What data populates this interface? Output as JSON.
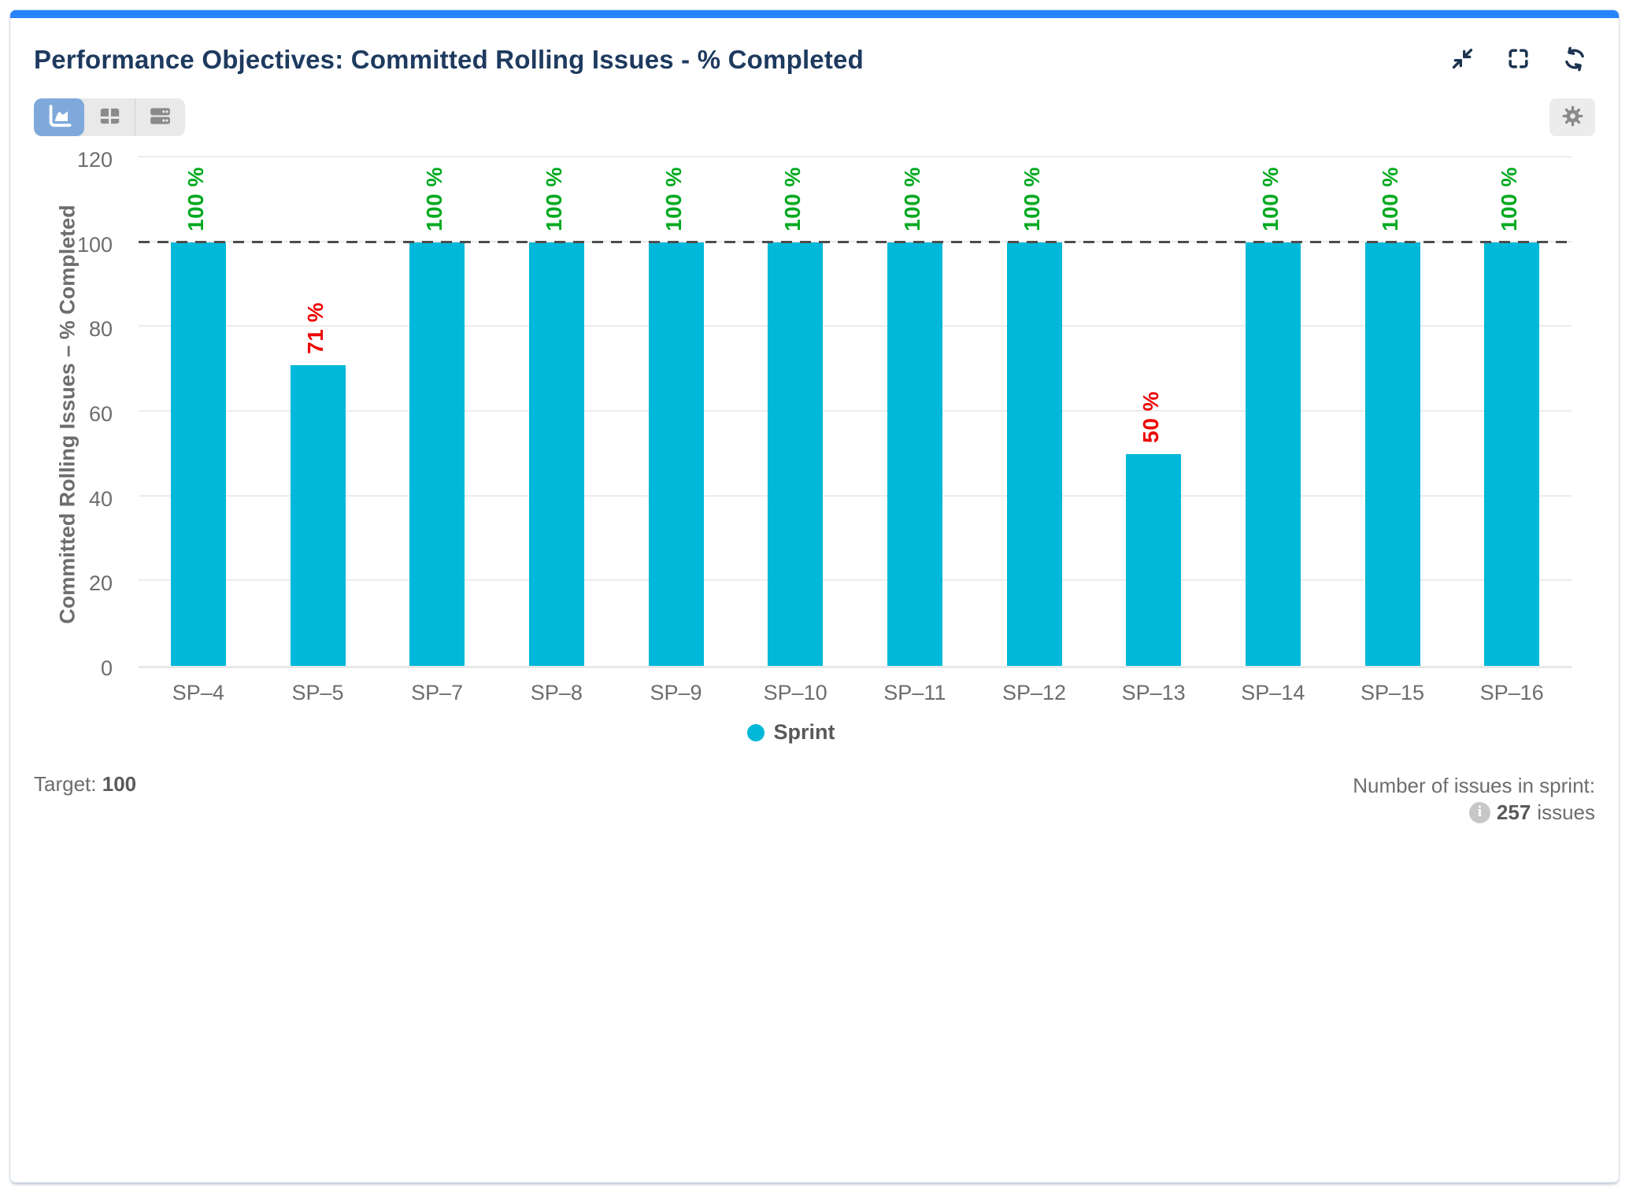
{
  "widget": {
    "title": "Performance Objectives: Committed Rolling Issues - % Completed",
    "accent_color": "#2684ff",
    "title_color": "#1e3a5f",
    "header_icons": [
      "collapse-icon",
      "fullscreen-icon",
      "refresh-icon"
    ]
  },
  "toolbar": {
    "view_toggles": [
      {
        "name": "chart-view",
        "icon": "area-chart-icon",
        "active": true
      },
      {
        "name": "table-view",
        "icon": "table-icon",
        "active": false
      },
      {
        "name": "rows-view",
        "icon": "rows-icon",
        "active": false
      }
    ],
    "settings_icon": "gear-icon"
  },
  "chart_data": {
    "type": "bar",
    "categories": [
      "SP–4",
      "SP–5",
      "SP–7",
      "SP–8",
      "SP–9",
      "SP–10",
      "SP–11",
      "SP–12",
      "SP–13",
      "SP–14",
      "SP–15",
      "SP–16"
    ],
    "values": [
      100,
      71,
      100,
      100,
      100,
      100,
      100,
      100,
      50,
      100,
      100,
      100
    ],
    "bar_labels": [
      "100 %",
      "71 %",
      "100 %",
      "100 %",
      "100 %",
      "100 %",
      "100 %",
      "100 %",
      "50 %",
      "100 %",
      "100 %",
      "100 %"
    ],
    "ylabel": "Committed Rolling Issues – % Completed",
    "xlabel": "",
    "legend": {
      "label": "Sprint",
      "position": "bottom"
    },
    "ylim": [
      0,
      120
    ],
    "yticks": [
      0,
      20,
      40,
      60,
      80,
      100,
      120
    ],
    "grid": true,
    "target": 100,
    "target_line": {
      "value": 100,
      "style": "dashed",
      "color": "#4d4d4d"
    },
    "bar_color": "#00b8d9",
    "label_color_met": "#00a91f",
    "label_color_missed": "#ee0000"
  },
  "footer": {
    "target_label": "Target:",
    "target_value": "100",
    "issues_label": "Number of issues in sprint:",
    "issues_count": "257",
    "issues_suffix": "issues",
    "info_icon_glyph": "i"
  }
}
